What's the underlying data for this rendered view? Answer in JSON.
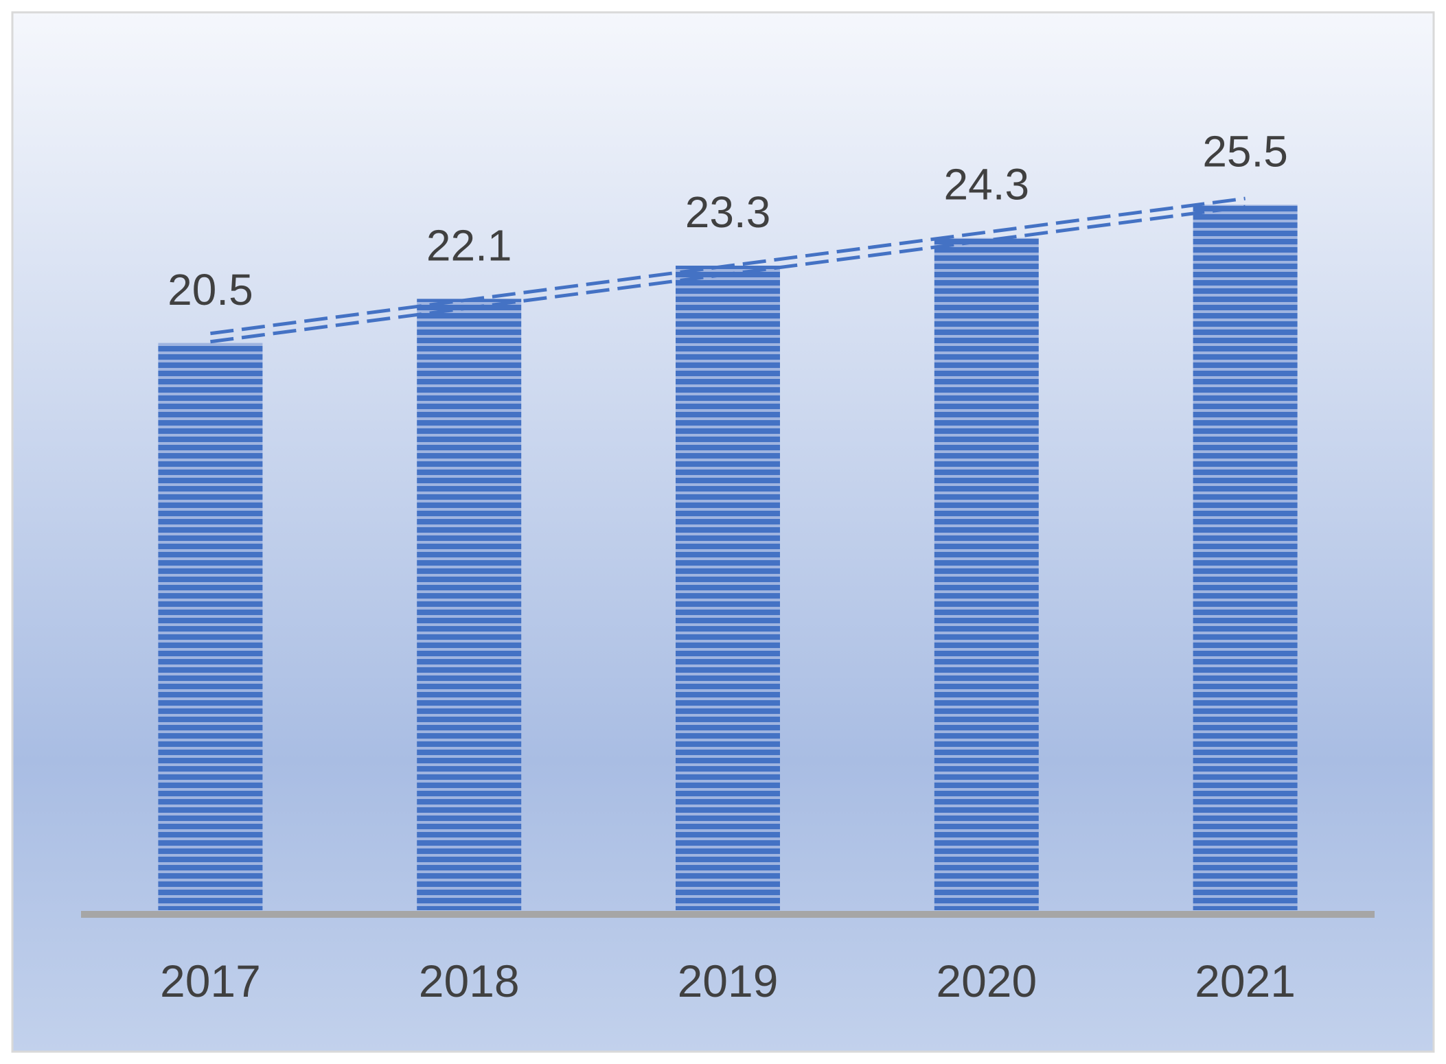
{
  "chart_data": {
    "type": "bar",
    "categories": [
      "2017",
      "2018",
      "2019",
      "2020",
      "2021"
    ],
    "values": [
      20.5,
      22.1,
      23.3,
      24.3,
      25.5
    ],
    "data_labels": [
      "20.5",
      "22.1",
      "23.3",
      "24.3",
      "25.5"
    ],
    "title": "",
    "xlabel": "",
    "ylabel": "",
    "ylim": [
      0,
      30
    ],
    "grid": false,
    "trendline": "linear (dashed double line)",
    "bar_fill": "horizontal stripes",
    "colors": {
      "bar": "#4472C4",
      "trendline": "#4472C4",
      "axis": "#A6A6A6",
      "background_top": "#F5F7FC",
      "background_mid": "#A9BDE3",
      "background_bottom": "#C2D1EC",
      "border": "#D9D9D9",
      "text": "#404040"
    }
  }
}
